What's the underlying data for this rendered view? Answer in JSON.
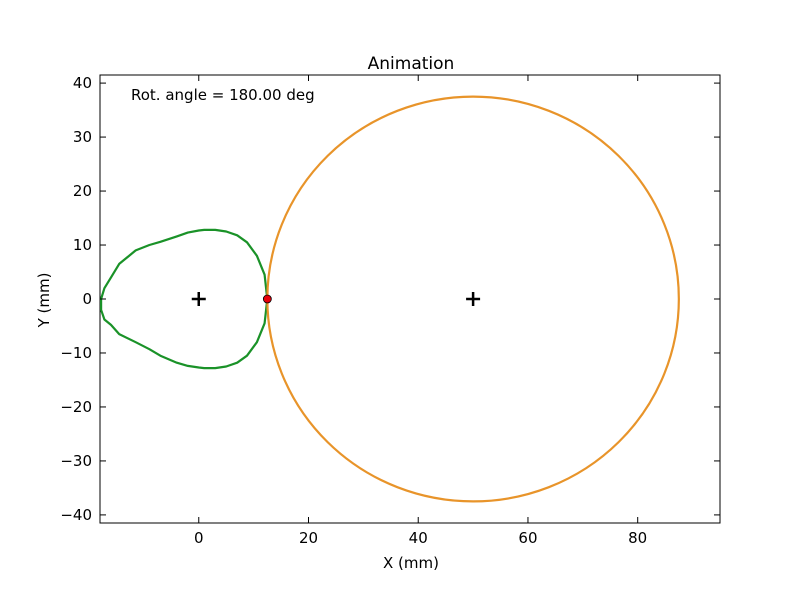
{
  "chart_data": {
    "type": "line",
    "title": "Animation",
    "xlabel": "X (mm)",
    "ylabel": "Y (mm)",
    "xlim": [
      -18,
      95
    ],
    "ylim": [
      -41.5,
      41.5
    ],
    "xticks": [
      0,
      20,
      40,
      60,
      80
    ],
    "yticks": [
      -40,
      -30,
      -20,
      -10,
      0,
      10,
      20,
      30,
      40
    ],
    "grid": false,
    "annotation": "Rot. angle = 180.00 deg",
    "colors": {
      "cam": "#1a9228",
      "follower": "#e8942a",
      "contact": "#e8000b"
    },
    "series": [
      {
        "type": "line",
        "x": [
          12.5,
          12.0,
          10.6,
          8.8,
          7.0,
          5.0,
          3.0,
          1.0,
          0.0,
          -2.0,
          -4.0,
          -7.0,
          -9.0,
          -11.5,
          -14.5,
          -16.0,
          -17.2,
          -17.8,
          -17.8,
          -17.2,
          -16.0,
          -14.5,
          -11.5,
          -9.0,
          -7.0,
          -4.0,
          -2.0,
          0.0,
          1.0,
          3.0,
          5.0,
          7.0,
          8.8,
          10.6,
          12.0,
          12.5
        ],
        "y": [
          0,
          4.5,
          8.0,
          10.5,
          11.8,
          12.5,
          12.8,
          12.8,
          12.7,
          12.3,
          11.6,
          10.6,
          10.0,
          9.0,
          6.5,
          4.0,
          2.0,
          0.0,
          -2.0,
          -3.8,
          -4.8,
          -6.5,
          -8.0,
          -9.3,
          -10.5,
          -11.8,
          -12.4,
          -12.7,
          -12.8,
          -12.8,
          -12.5,
          -11.8,
          -10.5,
          -8.0,
          -4.5,
          0
        ]
      },
      {
        "type": "circle",
        "center": [
          50,
          0
        ],
        "radius": 37.5
      }
    ],
    "markers": [
      {
        "type": "plus",
        "x": 0,
        "y": 0
      },
      {
        "type": "plus",
        "x": 50,
        "y": 0
      },
      {
        "type": "dot",
        "x": 12.5,
        "y": 0
      }
    ]
  }
}
